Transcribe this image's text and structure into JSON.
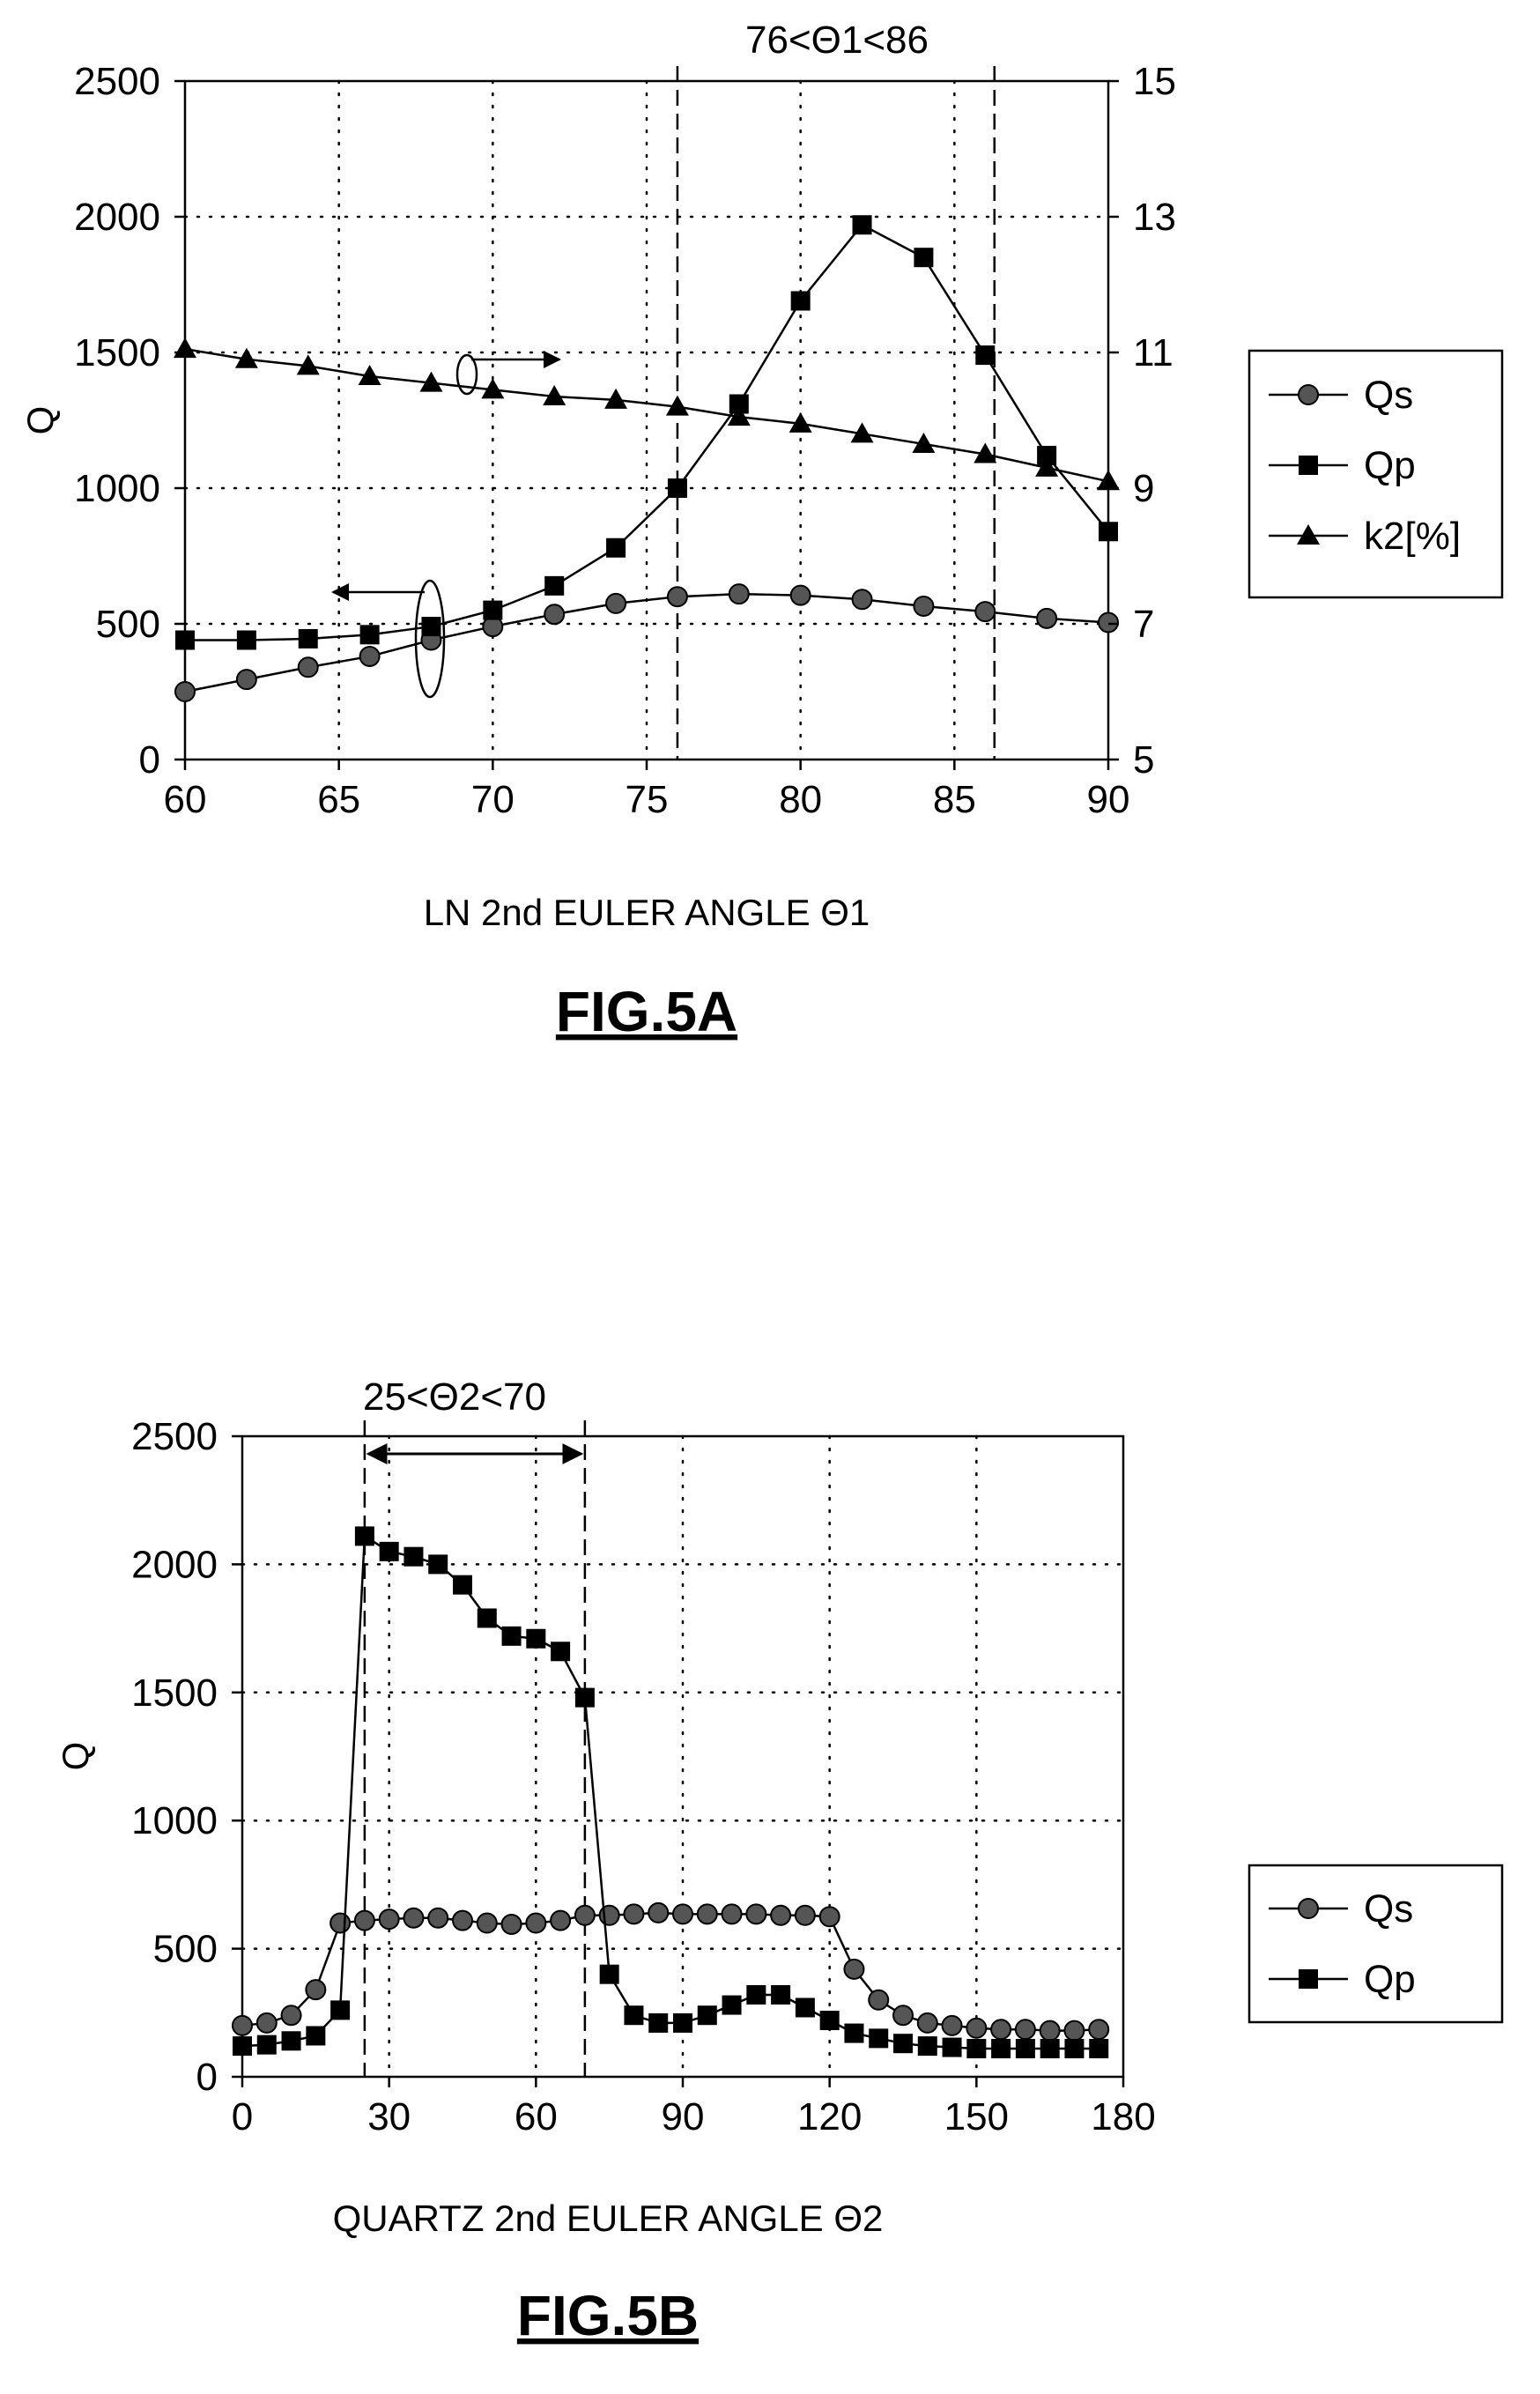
{
  "chart_data": [
    {
      "type": "line",
      "figure_label": "FIG.5A",
      "xlabel": "LN 2nd EULER ANGLE Θ1",
      "ylabel": "Q",
      "range_annotation": "76<Θ1<86",
      "xlim": [
        60,
        90
      ],
      "ylim": [
        0,
        2500
      ],
      "y2lim": [
        5,
        15
      ],
      "x_ticks": [
        60,
        65,
        70,
        75,
        80,
        85,
        90
      ],
      "y_ticks": [
        0,
        500,
        1000,
        1500,
        2000,
        2500
      ],
      "y2_ticks": [
        5,
        7,
        9,
        11,
        13,
        15
      ],
      "grid": true,
      "legend_position": "right",
      "range_lines_x": [
        76,
        86.3
      ],
      "series": [
        {
          "name": "Qs",
          "marker": "circle",
          "axis": "left",
          "x": [
            60,
            62,
            64,
            66,
            68,
            70,
            72,
            74,
            76,
            78,
            80,
            82,
            84,
            86,
            88,
            90
          ],
          "y": [
            250,
            295,
            340,
            380,
            440,
            490,
            535,
            575,
            600,
            610,
            605,
            590,
            565,
            545,
            520,
            505
          ]
        },
        {
          "name": "Qp",
          "marker": "square",
          "axis": "left",
          "x": [
            60,
            62,
            64,
            66,
            68,
            70,
            72,
            74,
            76,
            78,
            80,
            82,
            84,
            86,
            88,
            90
          ],
          "y": [
            440,
            440,
            445,
            460,
            490,
            550,
            640,
            780,
            1000,
            1310,
            1690,
            1970,
            1850,
            1490,
            1120,
            840
          ]
        },
        {
          "name": "k2[%]",
          "marker": "triangle",
          "axis": "right",
          "x": [
            60,
            62,
            64,
            66,
            68,
            70,
            72,
            74,
            76,
            78,
            80,
            82,
            84,
            86,
            88,
            90
          ],
          "y": [
            11.05,
            10.9,
            10.8,
            10.65,
            10.55,
            10.45,
            10.35,
            10.3,
            10.2,
            10.05,
            9.95,
            9.8,
            9.65,
            9.5,
            9.3,
            9.1
          ]
        }
      ]
    },
    {
      "type": "line",
      "figure_label": "FIG.5B",
      "xlabel": "QUARTZ 2nd EULER ANGLE Θ2",
      "ylabel": "Q",
      "range_annotation": "25<Θ2<70",
      "xlim": [
        0,
        180
      ],
      "ylim": [
        0,
        2500
      ],
      "x_ticks": [
        0,
        30,
        60,
        90,
        120,
        150,
        180
      ],
      "y_ticks": [
        0,
        500,
        1000,
        1500,
        2000,
        2500
      ],
      "grid": true,
      "legend_position": "right",
      "range_lines_x": [
        25,
        70
      ],
      "series": [
        {
          "name": "Qs",
          "marker": "circle",
          "x": [
            0,
            5,
            10,
            15,
            20,
            25,
            30,
            35,
            40,
            45,
            50,
            55,
            60,
            65,
            70,
            75,
            80,
            85,
            90,
            95,
            100,
            105,
            110,
            115,
            120,
            125,
            130,
            135,
            140,
            145,
            150,
            155,
            160,
            165,
            170,
            175
          ],
          "y": [
            200,
            210,
            240,
            340,
            600,
            610,
            615,
            620,
            620,
            610,
            600,
            595,
            600,
            610,
            630,
            630,
            635,
            640,
            635,
            635,
            635,
            635,
            630,
            630,
            625,
            420,
            300,
            240,
            210,
            200,
            190,
            185,
            185,
            180,
            180,
            185
          ]
        },
        {
          "name": "Qp",
          "marker": "square",
          "x": [
            0,
            5,
            10,
            15,
            20,
            25,
            30,
            35,
            40,
            45,
            50,
            55,
            60,
            65,
            70,
            75,
            80,
            85,
            90,
            95,
            100,
            105,
            110,
            115,
            120,
            125,
            130,
            135,
            140,
            145,
            150,
            155,
            160,
            165,
            170,
            175
          ],
          "y": [
            120,
            125,
            140,
            160,
            260,
            2110,
            2050,
            2030,
            2000,
            1920,
            1790,
            1720,
            1710,
            1660,
            1480,
            400,
            240,
            210,
            210,
            240,
            280,
            320,
            320,
            270,
            220,
            170,
            150,
            130,
            120,
            115,
            110,
            110,
            110,
            110,
            110,
            110
          ]
        }
      ]
    }
  ]
}
